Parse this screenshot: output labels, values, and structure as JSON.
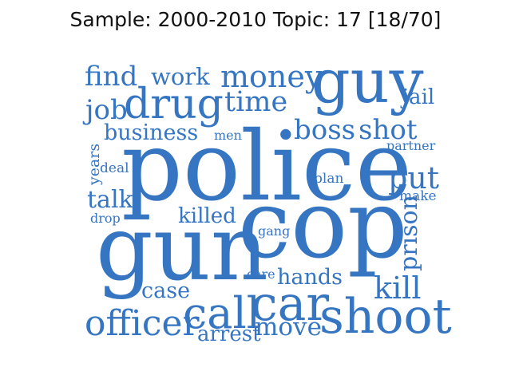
{
  "title": "Sample: 2000-2010 Topic: 17 [18/70]",
  "word_color": "#3575c2",
  "words": [
    {
      "id": "find",
      "text": "find"
    },
    {
      "id": "work",
      "text": "work"
    },
    {
      "id": "money",
      "text": "money"
    },
    {
      "id": "guy",
      "text": "guy"
    },
    {
      "id": "job",
      "text": "job"
    },
    {
      "id": "drug",
      "text": "drug"
    },
    {
      "id": "time",
      "text": "time"
    },
    {
      "id": "jail",
      "text": "jail"
    },
    {
      "id": "business",
      "text": "business"
    },
    {
      "id": "men",
      "text": "men"
    },
    {
      "id": "boss",
      "text": "boss"
    },
    {
      "id": "shot",
      "text": "shot"
    },
    {
      "id": "partner",
      "text": "partner"
    },
    {
      "id": "years",
      "text": "years"
    },
    {
      "id": "deal",
      "text": "deal"
    },
    {
      "id": "police",
      "text": "police"
    },
    {
      "id": "put",
      "text": "put"
    },
    {
      "id": "plan",
      "text": "plan"
    },
    {
      "id": "make",
      "text": "make"
    },
    {
      "id": "talk",
      "text": "talk"
    },
    {
      "id": "drop",
      "text": "drop"
    },
    {
      "id": "killed",
      "text": "killed"
    },
    {
      "id": "gang",
      "text": "gang"
    },
    {
      "id": "cop",
      "text": "cop"
    },
    {
      "id": "prison",
      "text": "prison"
    },
    {
      "id": "gun",
      "text": "gun"
    },
    {
      "id": "care",
      "text": "care"
    },
    {
      "id": "hands",
      "text": "hands"
    },
    {
      "id": "case",
      "text": "case"
    },
    {
      "id": "kill",
      "text": "kill"
    },
    {
      "id": "officer",
      "text": "officer"
    },
    {
      "id": "call",
      "text": "call"
    },
    {
      "id": "car",
      "text": "car"
    },
    {
      "id": "arrest",
      "text": "arrest"
    },
    {
      "id": "move",
      "text": "move"
    },
    {
      "id": "shoot",
      "text": "shoot"
    }
  ]
}
